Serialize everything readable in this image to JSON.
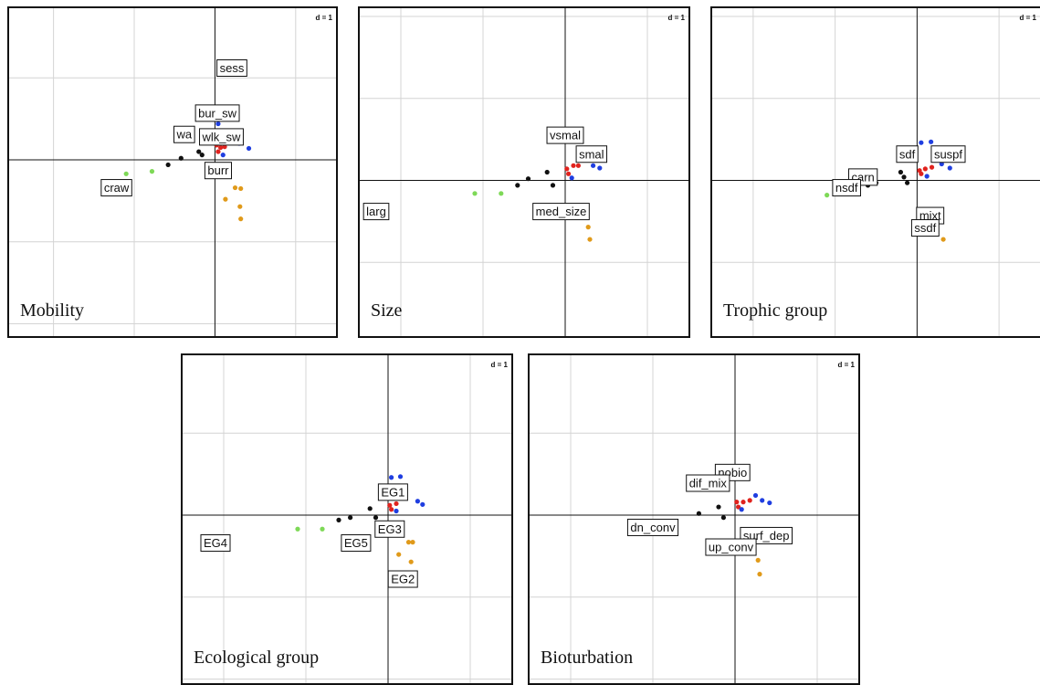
{
  "chart_data": [
    {
      "type": "scatter",
      "title": "Mobility",
      "scale_label": "d = 1",
      "xlim": [
        -2.55,
        1.5
      ],
      "ylim": [
        -2.15,
        1.85
      ],
      "grid": true,
      "points": [
        {
          "x": -1.1,
          "y": -0.17,
          "color": "#7ed957"
        },
        {
          "x": -0.78,
          "y": -0.14,
          "color": "#7ed957"
        },
        {
          "x": -0.58,
          "y": -0.06,
          "color": "#111111"
        },
        {
          "x": -0.42,
          "y": 0.02,
          "color": "#111111"
        },
        {
          "x": -0.2,
          "y": 0.1,
          "color": "#111111"
        },
        {
          "x": -0.16,
          "y": 0.06,
          "color": "#111111"
        },
        {
          "x": 0.02,
          "y": 0.18,
          "color": "#e0231e"
        },
        {
          "x": 0.04,
          "y": 0.1,
          "color": "#e0231e"
        },
        {
          "x": 0.07,
          "y": 0.15,
          "color": "#e0231e"
        },
        {
          "x": 0.12,
          "y": 0.16,
          "color": "#e0231e"
        },
        {
          "x": 0.04,
          "y": 0.44,
          "color": "#1f3ee0"
        },
        {
          "x": 0.42,
          "y": 0.14,
          "color": "#1f3ee0"
        },
        {
          "x": 0.3,
          "y": 0.2,
          "color": "#1f3ee0"
        },
        {
          "x": 0.1,
          "y": 0.06,
          "color": "#1f3ee0"
        },
        {
          "x": 0.25,
          "y": -0.34,
          "color": "#e09a1a"
        },
        {
          "x": 0.32,
          "y": -0.35,
          "color": "#e09a1a"
        },
        {
          "x": 0.13,
          "y": -0.48,
          "color": "#e09a1a"
        },
        {
          "x": 0.31,
          "y": -0.57,
          "color": "#e09a1a"
        },
        {
          "x": 0.32,
          "y": -0.72,
          "color": "#e09a1a"
        }
      ],
      "labels": [
        {
          "text": "sess",
          "x": 0.21,
          "y": 1.12
        },
        {
          "text": "bur_sw",
          "x": 0.03,
          "y": 0.57
        },
        {
          "text": "wa",
          "x": -0.38,
          "y": 0.31
        },
        {
          "text": "wlk_sw",
          "x": 0.08,
          "y": 0.28
        },
        {
          "text": "burr",
          "x": 0.04,
          "y": -0.13
        },
        {
          "text": "craw",
          "x": -1.22,
          "y": -0.34
        }
      ]
    },
    {
      "type": "scatter",
      "title": "Size",
      "scale_label": "d = 1",
      "xlim": [
        -2.5,
        1.5
      ],
      "ylim": [
        -1.9,
        2.1
      ],
      "grid": true,
      "points": [
        {
          "x": -1.1,
          "y": -0.16,
          "color": "#7ed957"
        },
        {
          "x": -0.78,
          "y": -0.16,
          "color": "#7ed957"
        },
        {
          "x": -0.58,
          "y": -0.06,
          "color": "#111111"
        },
        {
          "x": -0.45,
          "y": 0.02,
          "color": "#111111"
        },
        {
          "x": -0.22,
          "y": 0.1,
          "color": "#111111"
        },
        {
          "x": -0.15,
          "y": -0.06,
          "color": "#111111"
        },
        {
          "x": 0.02,
          "y": 0.14,
          "color": "#e0231e"
        },
        {
          "x": 0.04,
          "y": 0.08,
          "color": "#e0231e"
        },
        {
          "x": 0.1,
          "y": 0.18,
          "color": "#e0231e"
        },
        {
          "x": 0.16,
          "y": 0.18,
          "color": "#e0231e"
        },
        {
          "x": 0.34,
          "y": 0.18,
          "color": "#1f3ee0"
        },
        {
          "x": 0.42,
          "y": 0.15,
          "color": "#1f3ee0"
        },
        {
          "x": 0.08,
          "y": 0.03,
          "color": "#1f3ee0"
        },
        {
          "x": 0.28,
          "y": -0.57,
          "color": "#e09a1a"
        },
        {
          "x": 0.3,
          "y": -0.72,
          "color": "#e09a1a"
        }
      ],
      "labels": [
        {
          "text": "vsmal",
          "x": 0.0,
          "y": 0.55
        },
        {
          "text": "smal",
          "x": 0.32,
          "y": 0.32
        },
        {
          "text": "med_size",
          "x": -0.05,
          "y": -0.38
        },
        {
          "text": "larg",
          "x": -2.3,
          "y": -0.38
        }
      ]
    },
    {
      "type": "scatter",
      "title": "Trophic group",
      "scale_label": "d = 1",
      "xlim": [
        -2.5,
        1.5
      ],
      "ylim": [
        -1.9,
        2.1
      ],
      "grid": true,
      "points": [
        {
          "x": -1.1,
          "y": -0.18,
          "color": "#7ed957"
        },
        {
          "x": -0.6,
          "y": -0.06,
          "color": "#111111"
        },
        {
          "x": -0.5,
          "y": -0.03,
          "color": "#111111"
        },
        {
          "x": -0.2,
          "y": 0.1,
          "color": "#111111"
        },
        {
          "x": -0.16,
          "y": 0.04,
          "color": "#111111"
        },
        {
          "x": -0.12,
          "y": -0.03,
          "color": "#111111"
        },
        {
          "x": 0.03,
          "y": 0.12,
          "color": "#e0231e"
        },
        {
          "x": 0.05,
          "y": 0.08,
          "color": "#e0231e"
        },
        {
          "x": 0.1,
          "y": 0.14,
          "color": "#e0231e"
        },
        {
          "x": 0.18,
          "y": 0.16,
          "color": "#e0231e"
        },
        {
          "x": 0.05,
          "y": 0.46,
          "color": "#1f3ee0"
        },
        {
          "x": 0.17,
          "y": 0.47,
          "color": "#1f3ee0"
        },
        {
          "x": 0.3,
          "y": 0.2,
          "color": "#1f3ee0"
        },
        {
          "x": 0.4,
          "y": 0.15,
          "color": "#1f3ee0"
        },
        {
          "x": 0.12,
          "y": 0.05,
          "color": "#1f3ee0"
        },
        {
          "x": 0.32,
          "y": -0.72,
          "color": "#e09a1a"
        }
      ],
      "labels": [
        {
          "text": "sdf",
          "x": -0.12,
          "y": 0.32
        },
        {
          "text": "suspf",
          "x": 0.38,
          "y": 0.32
        },
        {
          "text": "carn",
          "x": -0.66,
          "y": 0.04
        },
        {
          "text": "nsdf",
          "x": -0.86,
          "y": -0.09
        },
        {
          "text": "mixt",
          "x": 0.16,
          "y": -0.43
        },
        {
          "text": "ssdf",
          "x": 0.1,
          "y": -0.58
        }
      ]
    },
    {
      "type": "scatter",
      "title": "Ecological group",
      "scale_label": "d = 1",
      "xlim": [
        -2.5,
        1.5
      ],
      "ylim": [
        -2.05,
        1.95
      ],
      "grid": true,
      "points": [
        {
          "x": -1.1,
          "y": -0.17,
          "color": "#7ed957"
        },
        {
          "x": -0.8,
          "y": -0.17,
          "color": "#7ed957"
        },
        {
          "x": -0.6,
          "y": -0.06,
          "color": "#111111"
        },
        {
          "x": -0.46,
          "y": -0.03,
          "color": "#111111"
        },
        {
          "x": -0.22,
          "y": 0.08,
          "color": "#111111"
        },
        {
          "x": -0.15,
          "y": -0.03,
          "color": "#111111"
        },
        {
          "x": 0.02,
          "y": 0.12,
          "color": "#e0231e"
        },
        {
          "x": 0.04,
          "y": 0.07,
          "color": "#e0231e"
        },
        {
          "x": 0.1,
          "y": 0.14,
          "color": "#e0231e"
        },
        {
          "x": 0.04,
          "y": 0.46,
          "color": "#1f3ee0"
        },
        {
          "x": 0.15,
          "y": 0.47,
          "color": "#1f3ee0"
        },
        {
          "x": 0.36,
          "y": 0.17,
          "color": "#1f3ee0"
        },
        {
          "x": 0.42,
          "y": 0.13,
          "color": "#1f3ee0"
        },
        {
          "x": 0.1,
          "y": 0.05,
          "color": "#1f3ee0"
        },
        {
          "x": 0.25,
          "y": -0.33,
          "color": "#e09a1a"
        },
        {
          "x": 0.3,
          "y": -0.33,
          "color": "#e09a1a"
        },
        {
          "x": 0.13,
          "y": -0.48,
          "color": "#e09a1a"
        },
        {
          "x": 0.28,
          "y": -0.57,
          "color": "#e09a1a"
        }
      ],
      "labels": [
        {
          "text": "EG1",
          "x": 0.06,
          "y": 0.28
        },
        {
          "text": "EG3",
          "x": 0.02,
          "y": -0.17
        },
        {
          "text": "EG5",
          "x": -0.39,
          "y": -0.34
        },
        {
          "text": "EG4",
          "x": -2.1,
          "y": -0.34
        },
        {
          "text": "EG2",
          "x": 0.18,
          "y": -0.78
        }
      ]
    },
    {
      "type": "scatter",
      "title": "Bioturbation",
      "scale_label": "d = 1",
      "xlim": [
        -2.5,
        1.5
      ],
      "ylim": [
        -2.05,
        1.95
      ],
      "grid": true,
      "points": [
        {
          "x": -0.44,
          "y": 0.02,
          "color": "#111111"
        },
        {
          "x": -0.2,
          "y": 0.1,
          "color": "#111111"
        },
        {
          "x": -0.14,
          "y": -0.03,
          "color": "#111111"
        },
        {
          "x": 0.02,
          "y": 0.16,
          "color": "#e0231e"
        },
        {
          "x": 0.04,
          "y": 0.1,
          "color": "#e0231e"
        },
        {
          "x": 0.1,
          "y": 0.16,
          "color": "#e0231e"
        },
        {
          "x": 0.18,
          "y": 0.18,
          "color": "#e0231e"
        },
        {
          "x": 0.25,
          "y": 0.24,
          "color": "#1f3ee0"
        },
        {
          "x": 0.33,
          "y": 0.18,
          "color": "#1f3ee0"
        },
        {
          "x": 0.42,
          "y": 0.15,
          "color": "#1f3ee0"
        },
        {
          "x": 0.08,
          "y": 0.07,
          "color": "#1f3ee0"
        },
        {
          "x": 0.28,
          "y": -0.55,
          "color": "#e09a1a"
        },
        {
          "x": 0.3,
          "y": -0.72,
          "color": "#e09a1a"
        }
      ],
      "labels": [
        {
          "text": "nobio",
          "x": -0.03,
          "y": 0.52
        },
        {
          "text": "dif_mix",
          "x": -0.33,
          "y": 0.39
        },
        {
          "text": "dn_conv",
          "x": -1.0,
          "y": -0.15
        },
        {
          "text": "surf_dep",
          "x": 0.38,
          "y": -0.25
        },
        {
          "text": "up_conv",
          "x": -0.05,
          "y": -0.39
        }
      ]
    }
  ]
}
